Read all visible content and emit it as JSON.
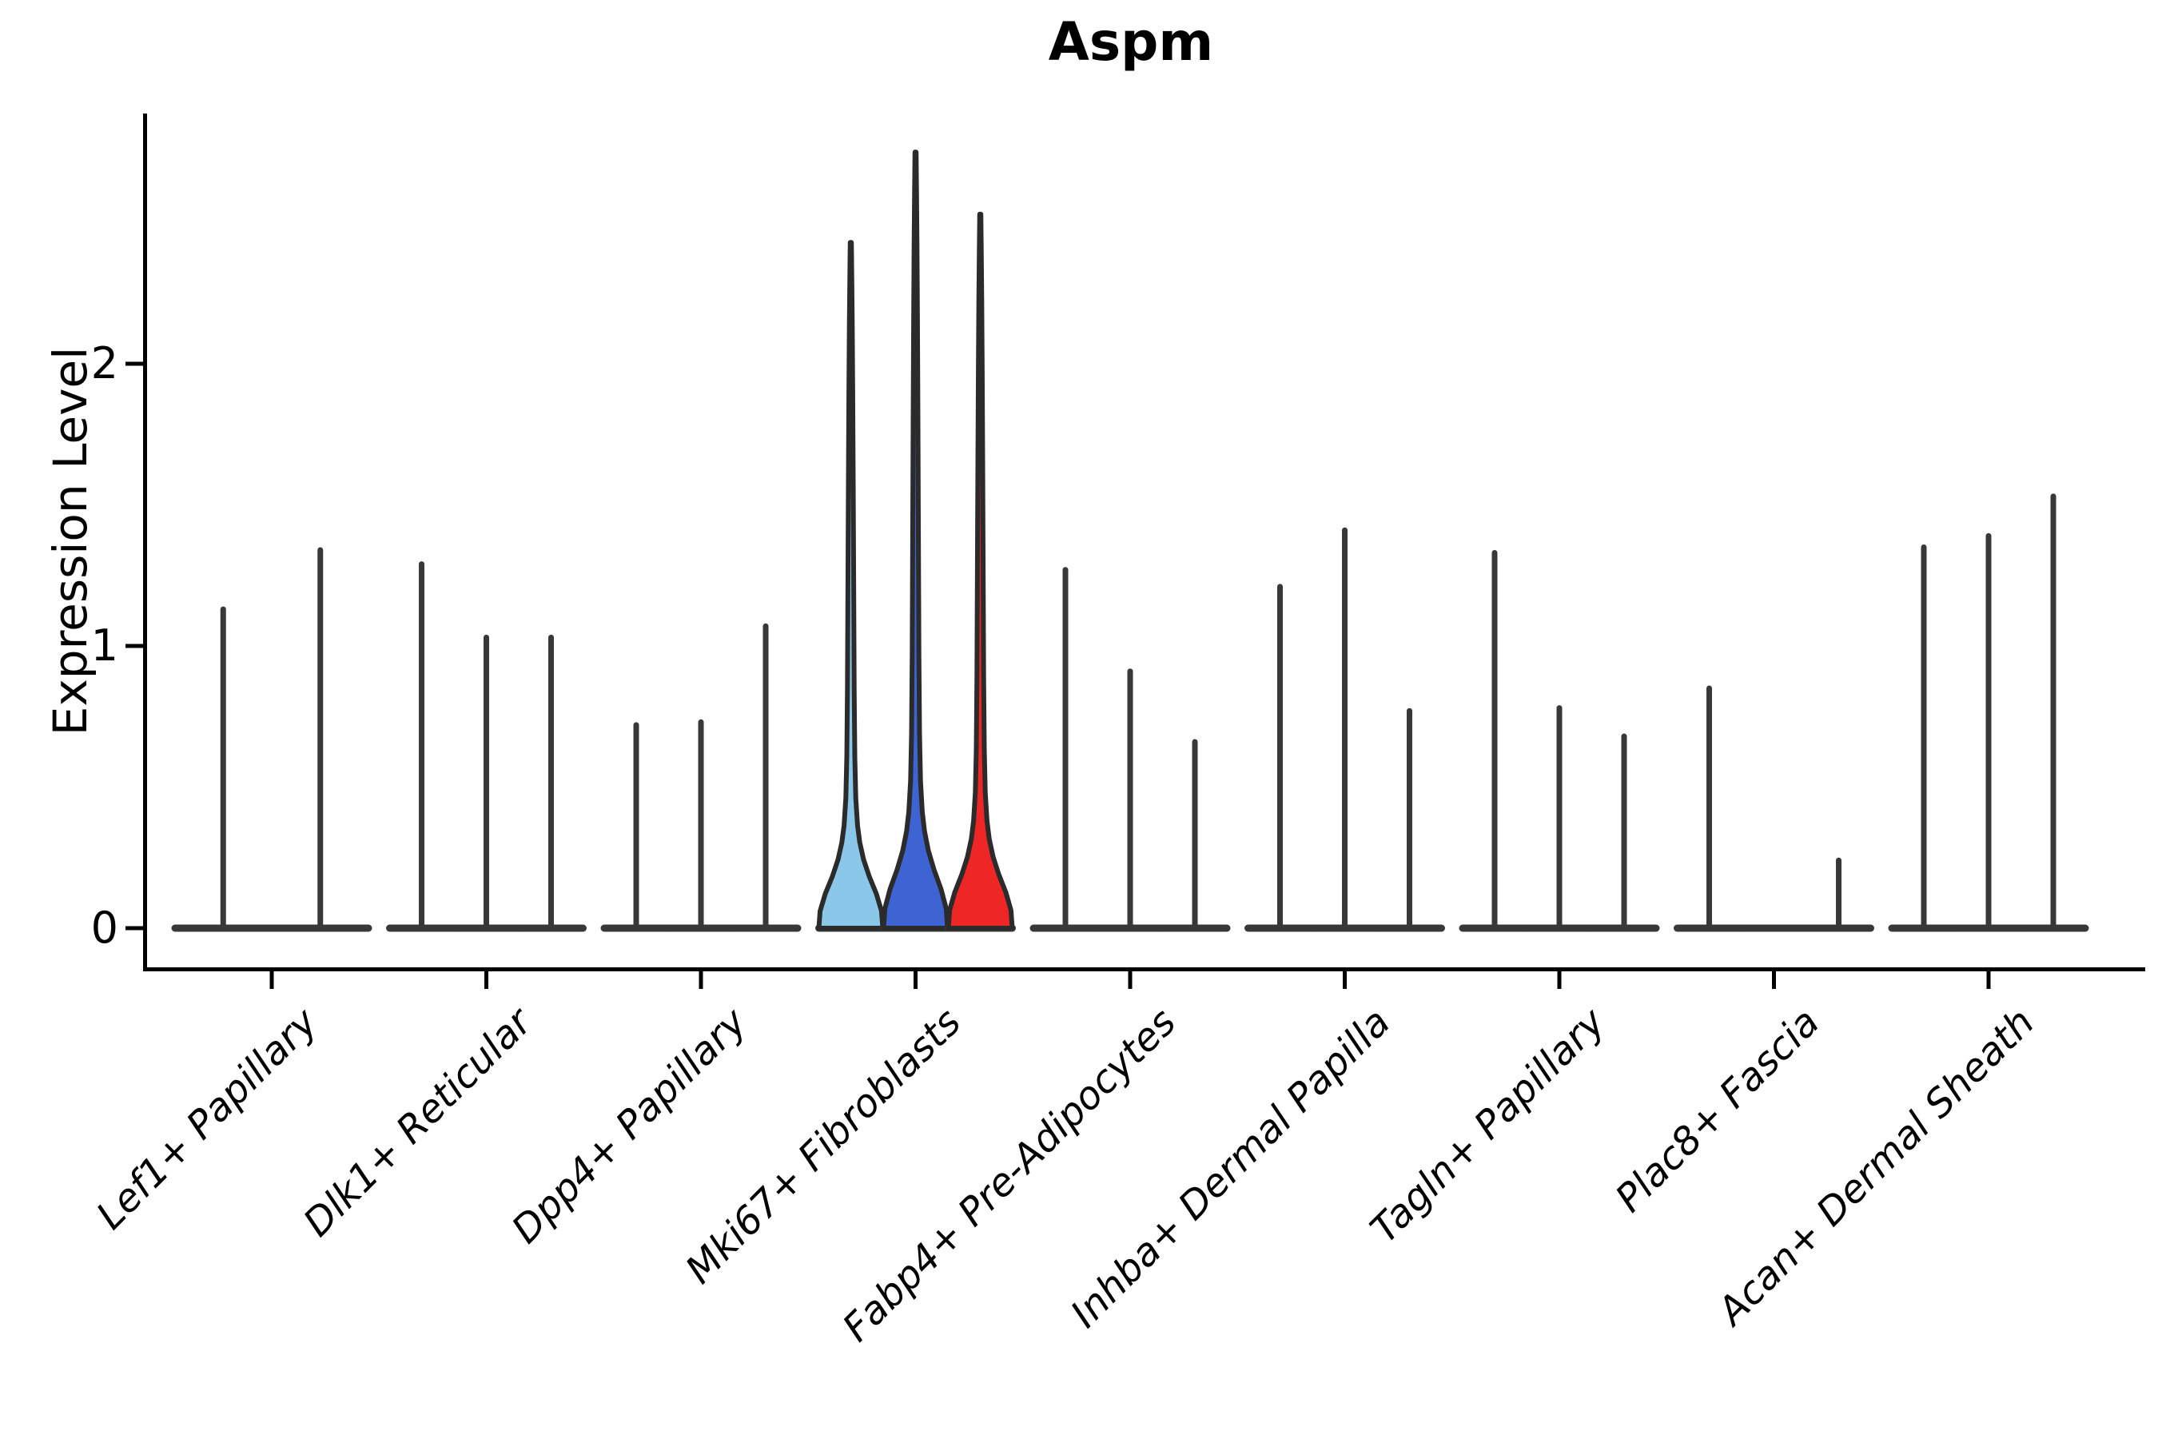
{
  "title": "Aspm",
  "chart_data": {
    "type": "violin",
    "title": "Aspm",
    "xlabel": "",
    "ylabel": "Expression Level",
    "yticks": [
      0,
      1,
      2
    ],
    "ylim": [
      0,
      2.88
    ],
    "grid": false,
    "legend": "none",
    "colors": {
      "highlight_palette": [
        "#8BC7E8",
        "#3D64D2",
        "#EE2625"
      ],
      "default_violin": "#383838",
      "outline": "#2B2B2B",
      "axis": "#000000"
    },
    "categories": [
      {
        "label": "Lef1+ Papillary",
        "violins": [
          {
            "max": 1.13
          },
          {
            "max": 1.34
          }
        ]
      },
      {
        "label": "Dlk1+ Reticular",
        "violins": [
          {
            "max": 1.29
          },
          {
            "max": 1.03
          },
          {
            "max": 1.03
          }
        ]
      },
      {
        "label": "Dpp4+ Papillary",
        "violins": [
          {
            "max": 0.72
          },
          {
            "max": 0.73
          },
          {
            "max": 1.07
          }
        ]
      },
      {
        "label": "Mki67+ Fibroblasts",
        "violins": [
          {
            "max": 2.43,
            "color": "#8BC7E8",
            "filled": true
          },
          {
            "max": 2.75,
            "color": "#3D64D2",
            "filled": true
          },
          {
            "max": 2.53,
            "color": "#EE2625",
            "filled": true
          }
        ]
      },
      {
        "label": "Fabp4+ Pre-Adipocytes",
        "violins": [
          {
            "max": 1.27
          },
          {
            "max": 0.91
          },
          {
            "max": 0.66
          }
        ]
      },
      {
        "label": "Inhba+ Dermal Papilla",
        "violins": [
          {
            "max": 1.21
          },
          {
            "max": 1.41
          },
          {
            "max": 0.77
          }
        ]
      },
      {
        "label": "Tagln+ Papillary",
        "violins": [
          {
            "max": 1.33
          },
          {
            "max": 0.78
          },
          {
            "max": 0.68
          }
        ]
      },
      {
        "label": "Plac8+ Fascia",
        "violins": [
          {
            "max": 0.85
          },
          {
            "max": 0.0
          },
          {
            "max": 0.24
          }
        ]
      },
      {
        "label": "Acan+ Dermal Sheath",
        "violins": [
          {
            "max": 1.35
          },
          {
            "max": 1.39
          },
          {
            "max": 1.53
          }
        ]
      }
    ]
  }
}
